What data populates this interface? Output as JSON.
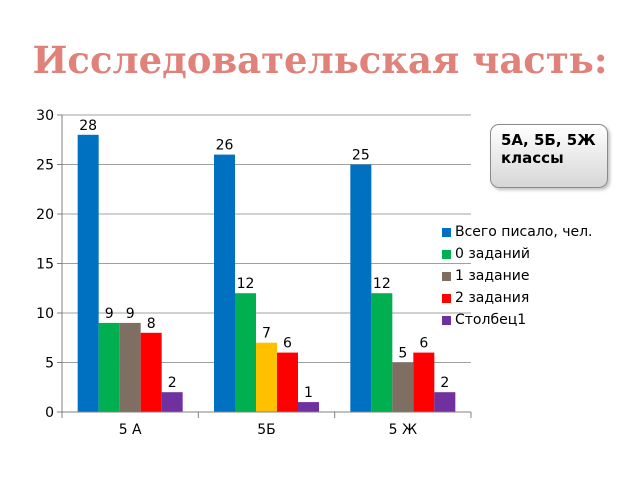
{
  "slide": {
    "title": "Исследовательская часть:",
    "callout": "5А, 5Б, 5Ж классы"
  },
  "chart_data": {
    "type": "bar",
    "categories": [
      "5 А",
      "5Б",
      "5 Ж"
    ],
    "ylim": [
      0,
      30
    ],
    "yticks": [
      0,
      5,
      10,
      15,
      20,
      25,
      30
    ],
    "grid": true,
    "legend_position": "right",
    "series": [
      {
        "name": "Всего писало, чел.",
        "color": "#0070c0",
        "values": [
          28,
          26,
          25
        ]
      },
      {
        "name": "0 заданий",
        "color": "#00b050",
        "values": [
          9,
          12,
          12
        ]
      },
      {
        "name": "1 задание",
        "color": "#7f6f63",
        "values": [
          9,
          null,
          5
        ]
      },
      {
        "name": "",
        "color": "#ffc000",
        "values": [
          null,
          7,
          null
        ]
      },
      {
        "name": "2 задания",
        "color": "#ff0000",
        "values": [
          8,
          6,
          6
        ]
      },
      {
        "name": "Столбец1",
        "color": "#7030a0",
        "values": [
          2,
          1,
          2
        ]
      }
    ]
  }
}
